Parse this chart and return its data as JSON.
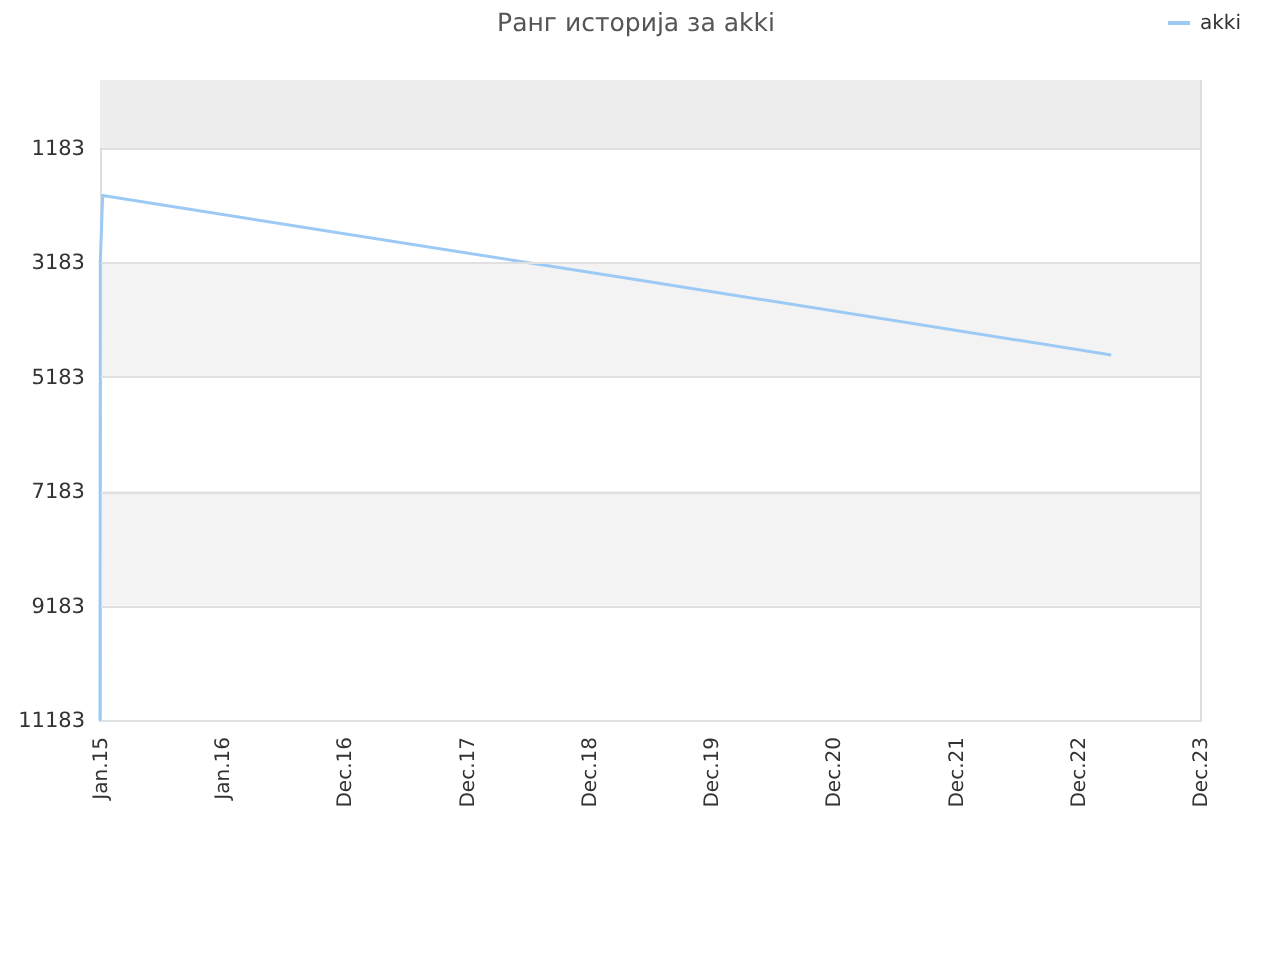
{
  "chart_data": {
    "type": "line",
    "title": "Ранг историја за akki",
    "x": [
      "2015-01-01",
      "2015-01-02",
      "2015-01-09",
      "2019-06-02",
      "2023-04-05"
    ],
    "series": [
      {
        "name": "akki",
        "color": "#9ccaf5",
        "values": [
          11183,
          3150,
          2020,
          3500,
          4800
        ]
      }
    ],
    "xlim": [
      "2015-01-01",
      "2023-12-30"
    ],
    "xticks": [
      {
        "value": "2015-01-01",
        "label": "Jan.15"
      },
      {
        "value": "2016-01-01",
        "label": "Jan.16"
      },
      {
        "value": "2016-12-31",
        "label": "Dec.16"
      },
      {
        "value": "2017-12-31",
        "label": "Dec.17"
      },
      {
        "value": "2018-12-31",
        "label": "Dec.18"
      },
      {
        "value": "2019-12-31",
        "label": "Dec.19"
      },
      {
        "value": "2020-12-30",
        "label": "Dec.20"
      },
      {
        "value": "2021-12-30",
        "label": "Dec.21"
      },
      {
        "value": "2022-12-30",
        "label": "Dec.22"
      },
      {
        "value": "2023-12-30",
        "label": "Dec.23"
      }
    ],
    "ylim": [
      11183,
      0
    ],
    "yticks": [
      1183,
      3183,
      5183,
      7183,
      9183,
      11183
    ],
    "bands": [
      {
        "axis": "y",
        "from": 0,
        "to": 1183,
        "color": "#ededed"
      },
      {
        "axis": "y",
        "from": 3183,
        "to": 5183,
        "color": "#f3f3f3"
      },
      {
        "axis": "y",
        "from": 7183,
        "to": 9183,
        "color": "#f3f3f3"
      }
    ],
    "grid": "y",
    "legend": "top right",
    "marker": "none",
    "line_style": "solid"
  }
}
